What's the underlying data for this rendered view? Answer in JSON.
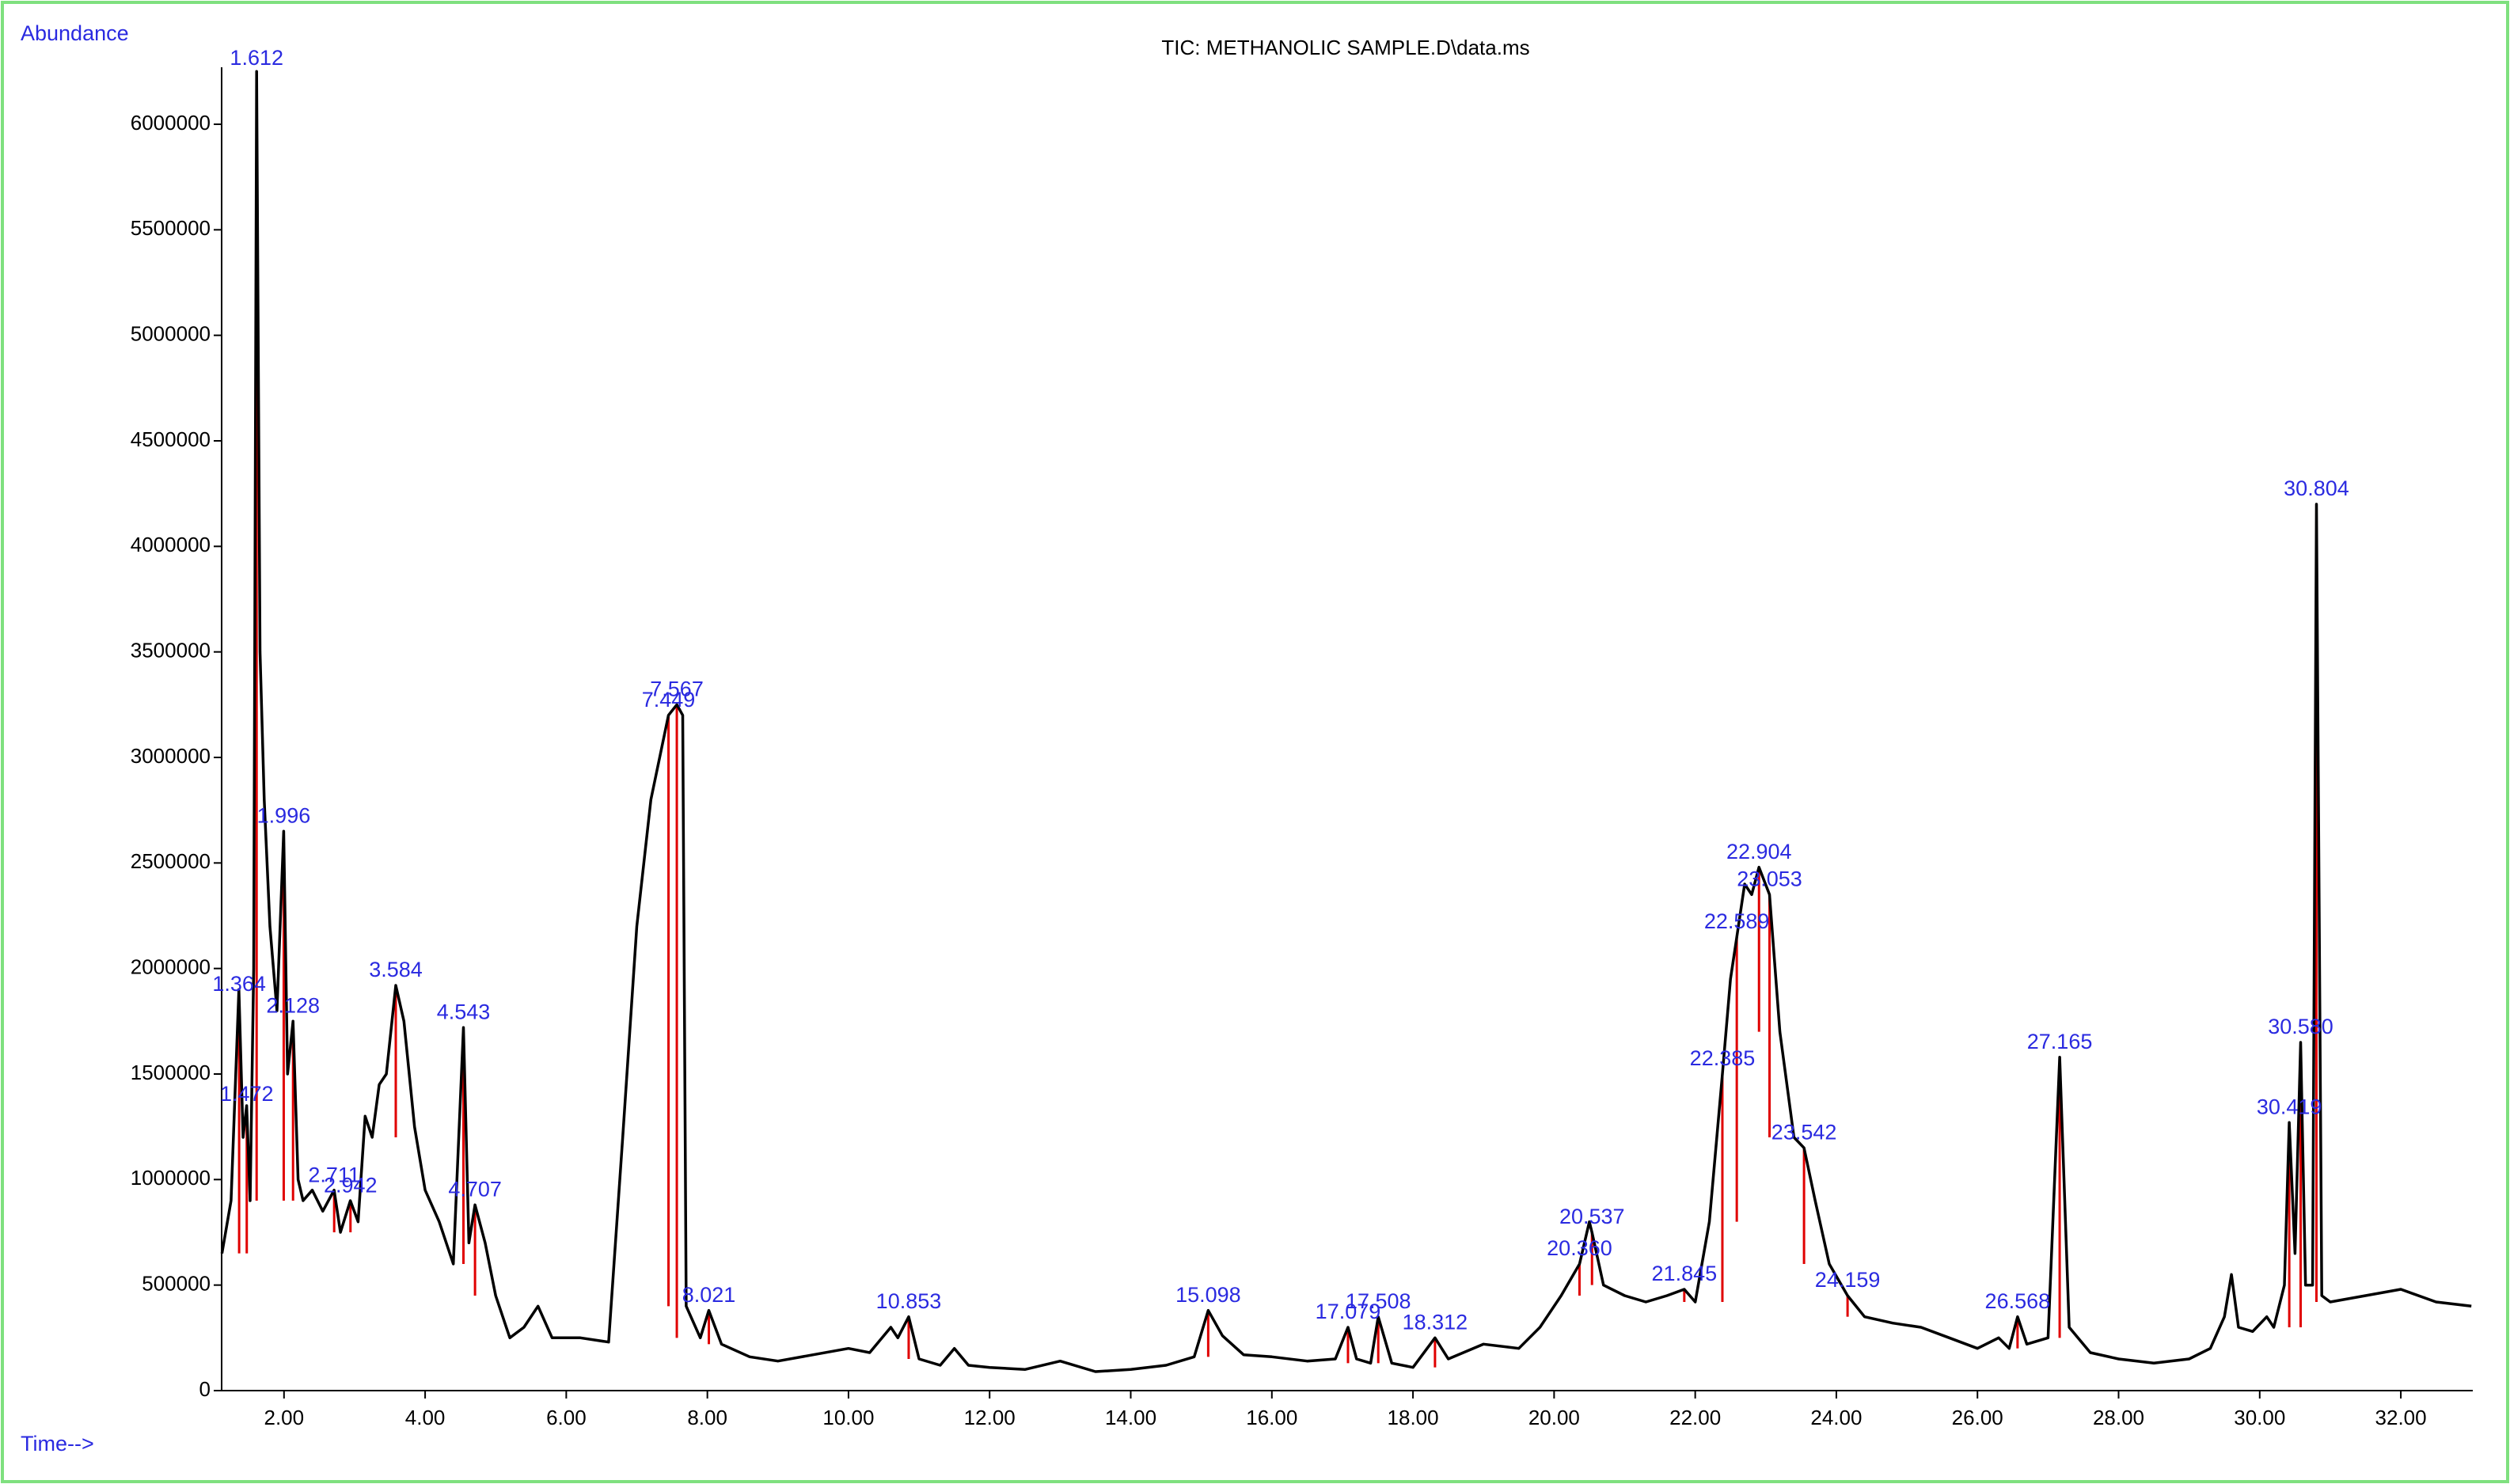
{
  "chart_data": {
    "type": "line",
    "title": "TIC: METHANOLIC SAMPLE.D\\data.ms",
    "ylabel": "Abundance",
    "xlabel": "Time-->",
    "color": "#000000",
    "peak_color": "#e00000",
    "label_color": "#2a2ae0",
    "xlim": [
      1.116,
      33.02
    ],
    "ylim": [
      0,
      6270000
    ],
    "xticks": [
      {
        "value": 2,
        "label": "2.00"
      },
      {
        "value": 4,
        "label": "4.00"
      },
      {
        "value": 6,
        "label": "6.00"
      },
      {
        "value": 8,
        "label": "8.00"
      },
      {
        "value": 10,
        "label": "10.00"
      },
      {
        "value": 12,
        "label": "12.00"
      },
      {
        "value": 14,
        "label": "14.00"
      },
      {
        "value": 16,
        "label": "16.00"
      },
      {
        "value": 18,
        "label": "18.00"
      },
      {
        "value": 20,
        "label": "20.00"
      },
      {
        "value": 22,
        "label": "22.00"
      },
      {
        "value": 24,
        "label": "24.00"
      },
      {
        "value": 26,
        "label": "26.00"
      },
      {
        "value": 28,
        "label": "28.00"
      },
      {
        "value": 30,
        "label": "30.00"
      },
      {
        "value": 32,
        "label": "32.00"
      }
    ],
    "yticks": [
      0,
      500000,
      1000000,
      1500000,
      2000000,
      2500000,
      3000000,
      3500000,
      4000000,
      4500000,
      5000000,
      5500000,
      6000000
    ],
    "x": [
      1.12,
      1.25,
      1.36,
      1.42,
      1.47,
      1.52,
      1.57,
      1.612,
      1.66,
      1.72,
      1.8,
      1.9,
      1.996,
      2.05,
      2.128,
      2.2,
      2.27,
      2.4,
      2.55,
      2.71,
      2.8,
      2.94,
      3.05,
      3.15,
      3.25,
      3.35,
      3.45,
      3.584,
      3.7,
      3.85,
      4.0,
      4.2,
      4.4,
      4.543,
      4.62,
      4.707,
      4.85,
      5.0,
      5.2,
      5.4,
      5.6,
      5.8,
      6.2,
      6.6,
      6.8,
      7.0,
      7.2,
      7.449,
      7.567,
      7.65,
      7.7,
      7.9,
      8.021,
      8.2,
      8.6,
      9.0,
      9.5,
      10.0,
      10.3,
      10.6,
      10.7,
      10.853,
      11.0,
      11.3,
      11.5,
      11.7,
      12.0,
      12.5,
      13.0,
      13.5,
      14.0,
      14.5,
      14.9,
      15.098,
      15.3,
      15.6,
      16.0,
      16.5,
      16.9,
      17.079,
      17.2,
      17.4,
      17.508,
      17.7,
      18.0,
      18.312,
      18.5,
      19.0,
      19.5,
      19.8,
      20.1,
      20.36,
      20.5,
      20.537,
      20.7,
      21.0,
      21.3,
      21.6,
      21.845,
      22.0,
      22.2,
      22.385,
      22.5,
      22.589,
      22.7,
      22.8,
      22.904,
      23.053,
      23.2,
      23.4,
      23.542,
      23.7,
      23.9,
      24.159,
      24.4,
      24.8,
      25.2,
      25.6,
      26.0,
      26.3,
      26.45,
      26.568,
      26.7,
      27.0,
      27.165,
      27.3,
      27.6,
      28.0,
      28.5,
      29.0,
      29.3,
      29.5,
      29.6,
      29.7,
      29.9,
      30.1,
      30.2,
      30.35,
      30.419,
      30.5,
      30.58,
      30.65,
      30.75,
      30.804,
      30.88,
      31.0,
      31.5,
      32.0,
      32.5,
      33.0
    ],
    "values": [
      650000,
      900000,
      1900000,
      1200000,
      1350000,
      900000,
      2000000,
      6250000,
      3500000,
      2800000,
      2200000,
      1800000,
      2650000,
      1500000,
      1750000,
      1000000,
      900000,
      950000,
      850000,
      950000,
      750000,
      900000,
      800000,
      1300000,
      1200000,
      1450000,
      1500000,
      1920000,
      1750000,
      1250000,
      950000,
      800000,
      600000,
      1720000,
      700000,
      880000,
      700000,
      450000,
      250000,
      300000,
      400000,
      250000,
      250000,
      230000,
      1200000,
      2200000,
      2800000,
      3200000,
      3250000,
      3200000,
      400000,
      250000,
      380000,
      220000,
      160000,
      140000,
      170000,
      200000,
      180000,
      300000,
      250000,
      350000,
      150000,
      120000,
      200000,
      120000,
      110000,
      100000,
      140000,
      90000,
      100000,
      120000,
      160000,
      380000,
      260000,
      170000,
      160000,
      140000,
      150000,
      300000,
      150000,
      130000,
      350000,
      130000,
      110000,
      250000,
      150000,
      220000,
      200000,
      300000,
      450000,
      600000,
      800000,
      750000,
      500000,
      450000,
      420000,
      450000,
      480000,
      420000,
      800000,
      1500000,
      1950000,
      2150000,
      2400000,
      2350000,
      2480000,
      2350000,
      1700000,
      1200000,
      1150000,
      900000,
      600000,
      450000,
      350000,
      320000,
      300000,
      250000,
      200000,
      250000,
      200000,
      350000,
      220000,
      250000,
      1580000,
      300000,
      180000,
      150000,
      130000,
      150000,
      200000,
      350000,
      550000,
      300000,
      280000,
      350000,
      300000,
      500000,
      1270000,
      650000,
      1650000,
      500000,
      500000,
      4200000,
      450000,
      420000,
      450000,
      480000,
      420000,
      400000
    ],
    "peaks": [
      {
        "value": 1.364,
        "label": "1.364"
      },
      {
        "value": 1.472,
        "label": "1.472"
      },
      {
        "value": 1.612,
        "label": "1.612"
      },
      {
        "value": 1.996,
        "label": "1.996"
      },
      {
        "value": 2.128,
        "label": "2.128"
      },
      {
        "value": 2.711,
        "label": "2.711"
      },
      {
        "value": 2.942,
        "label": "2.942"
      },
      {
        "value": 3.584,
        "label": "3.584"
      },
      {
        "value": 4.543,
        "label": "4.543"
      },
      {
        "value": 4.707,
        "label": "4.707"
      },
      {
        "value": 7.449,
        "label": "7.449"
      },
      {
        "value": 7.567,
        "label": "7.567"
      },
      {
        "value": 8.021,
        "label": "8.021"
      },
      {
        "value": 10.853,
        "label": "10.853"
      },
      {
        "value": 15.098,
        "label": "15.098"
      },
      {
        "value": 17.079,
        "label": "17.079"
      },
      {
        "value": 17.508,
        "label": "17.508"
      },
      {
        "value": 18.312,
        "label": "18.312"
      },
      {
        "value": 20.36,
        "label": "20.360"
      },
      {
        "value": 20.537,
        "label": "20.537"
      },
      {
        "value": 21.845,
        "label": "21.845"
      },
      {
        "value": 22.385,
        "label": "22.385"
      },
      {
        "value": 22.589,
        "label": "22.589"
      },
      {
        "value": 22.904,
        "label": "22.904"
      },
      {
        "value": 23.053,
        "label": "23.053"
      },
      {
        "value": 23.542,
        "label": "23.542"
      },
      {
        "value": 24.159,
        "label": "24.159"
      },
      {
        "value": 26.568,
        "label": "26.568"
      },
      {
        "value": 27.165,
        "label": "27.165"
      },
      {
        "value": 30.419,
        "label": "30.419"
      },
      {
        "value": 30.58,
        "label": "30.580"
      },
      {
        "value": 30.804,
        "label": "30.804"
      }
    ]
  }
}
